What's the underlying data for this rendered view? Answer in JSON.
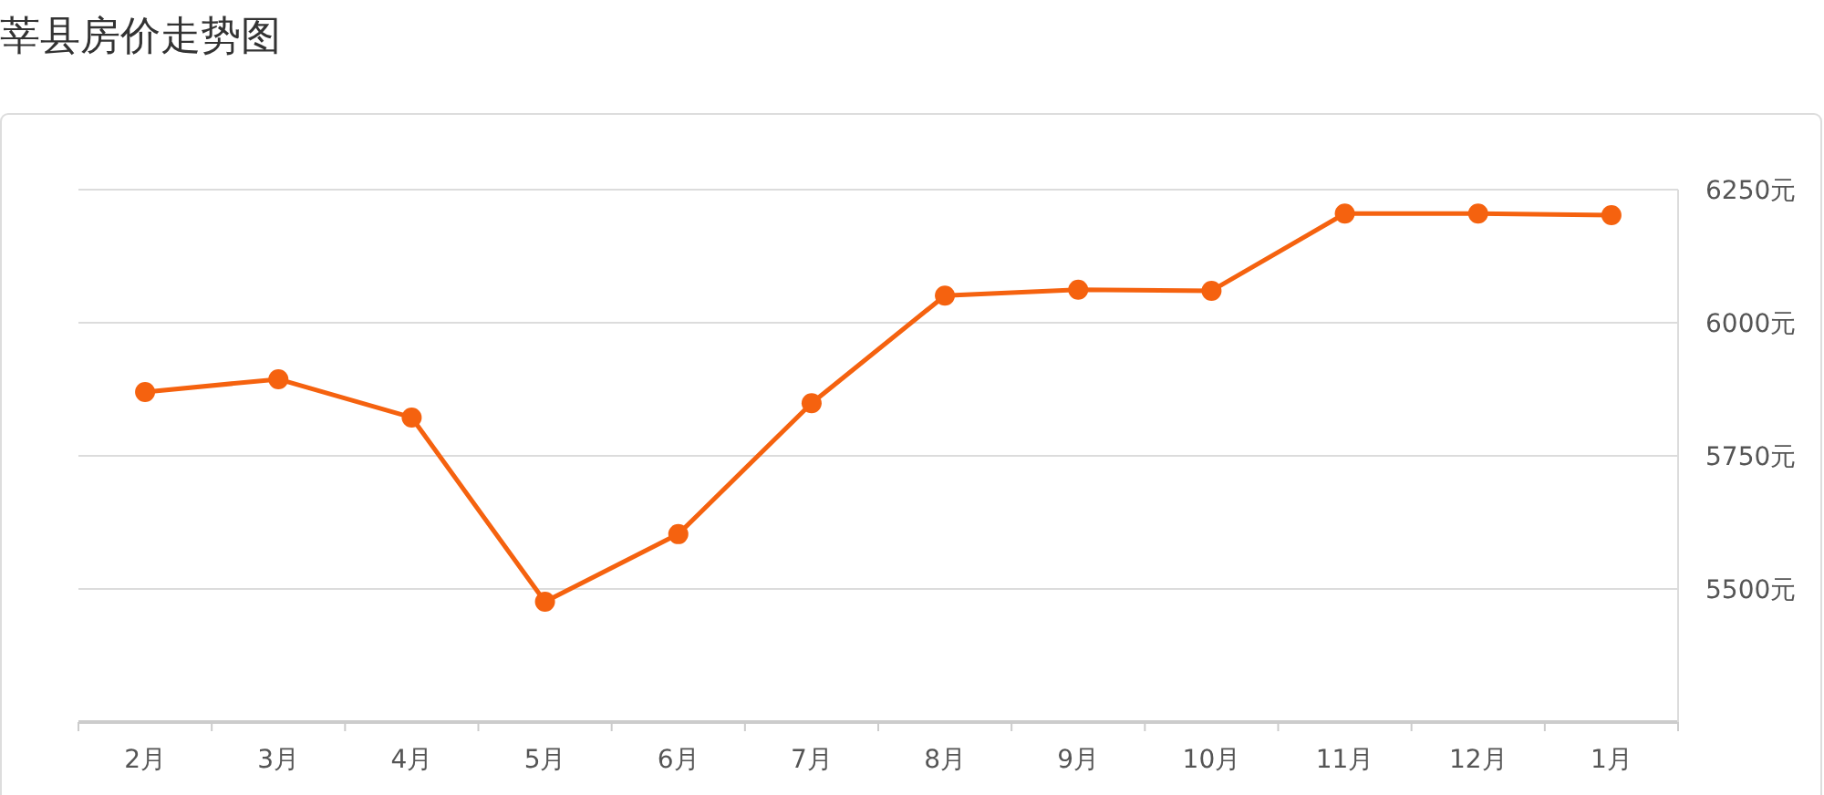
{
  "chart_data": {
    "type": "line",
    "title": "莘县房价走势图",
    "categories": [
      "2月",
      "3月",
      "4月",
      "5月",
      "6月",
      "7月",
      "8月",
      "9月",
      "10月",
      "11月",
      "12月",
      "1月"
    ],
    "series": [
      {
        "color": "#f5620f",
        "values": [
          5870,
          5894,
          5822,
          5476,
          5603,
          5849,
          6051,
          6062,
          6060,
          6205,
          6205,
          6202
        ]
      }
    ],
    "ylim": [
      5250,
      6250
    ],
    "yticks": [
      {
        "value": 5500,
        "label": "5500元"
      },
      {
        "value": 5750,
        "label": "5750元"
      },
      {
        "value": 6000,
        "label": "6000元"
      },
      {
        "value": 6250,
        "label": "6250元"
      }
    ],
    "grid": "y",
    "marker": "circle",
    "line_style": "solid"
  }
}
